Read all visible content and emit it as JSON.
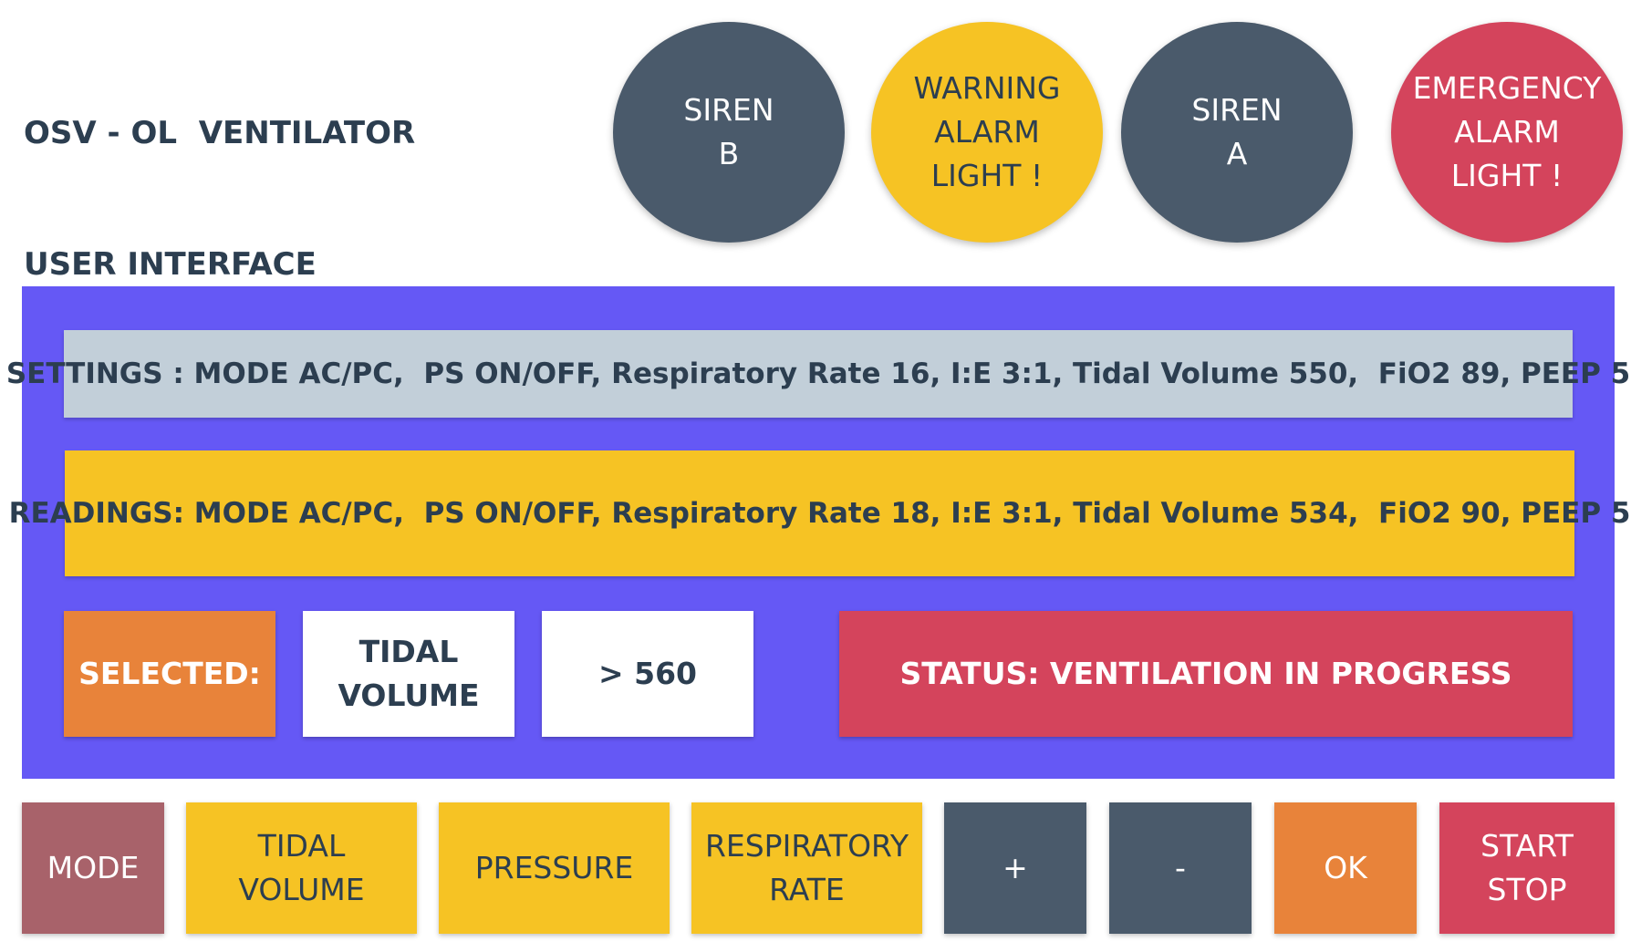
{
  "header": {
    "title_line1": "OSV - OL  VENTILATOR",
    "title_line2": "USER INTERFACE"
  },
  "lights": {
    "siren_b": "SIREN\nB",
    "warning": "WARNING\nALARM\nLIGHT !",
    "siren_a": "SIREN\nA",
    "emergency": "EMERGENCY\nALARM\nLIGHT !"
  },
  "panel": {
    "settings": "SETTINGS : MODE AC/PC,  PS ON/OFF, Respiratory Rate 16, I:E 3:1, Tidal Volume 550,  FiO2 89, PEEP 5",
    "readings": "READINGS: MODE AC/PC,  PS ON/OFF, Respiratory Rate 18, I:E 3:1, Tidal Volume 534,  FiO2 90, PEEP 5",
    "selected_label": "SELECTED:",
    "selected_param": "TIDAL\nVOLUME",
    "selected_value": "> 560",
    "status": "STATUS: VENTILATION IN PROGRESS"
  },
  "buttons": {
    "mode": "MODE",
    "tidal_volume": "TIDAL\nVOLUME",
    "pressure": "PRESSURE",
    "respiratory_rate": "RESPIRATORY\nRATE",
    "plus": "+",
    "minus": "-",
    "ok": "OK",
    "start_stop": "START\nSTOP"
  },
  "colors": {
    "panel": "#6558f5",
    "dark": "#4a5a6b",
    "yellow": "#f6c324",
    "red": "#d4445c",
    "orange": "#e8833a",
    "mode": "#a8626a",
    "settings": "#c2cfd9"
  }
}
